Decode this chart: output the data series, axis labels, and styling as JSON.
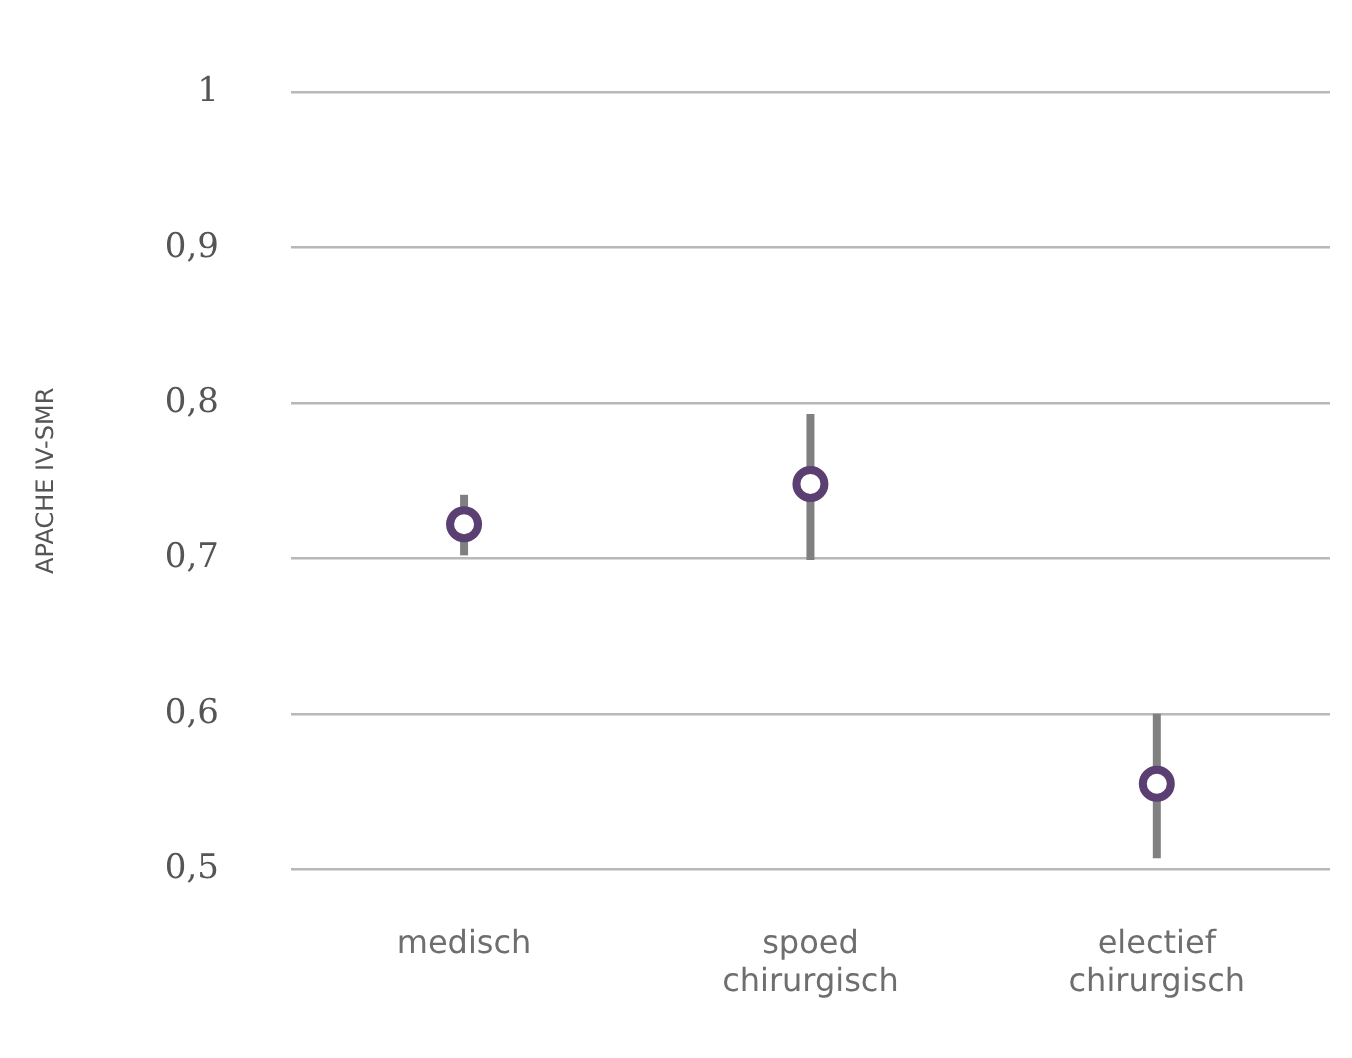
{
  "chart_data": {
    "type": "scatter",
    "ylabel": "APACHE IV-SMR",
    "categories": [
      "medisch",
      "spoed chirurgisch",
      "electief chirurgisch"
    ],
    "series": [
      {
        "color": "#5b3f72",
        "values": [
          0.722,
          0.748,
          0.555
        ],
        "errors": [
          [
            0.702,
            0.741
          ],
          [
            0.699,
            0.793
          ],
          [
            0.507,
            0.6
          ]
        ]
      }
    ],
    "ylim": [
      0.5,
      1
    ],
    "yticks": [
      {
        "value": 0.5,
        "label": "0,5"
      },
      {
        "value": 0.6,
        "label": "0,6"
      },
      {
        "value": 0.7,
        "label": "0,7"
      },
      {
        "value": 0.8,
        "label": "0,8"
      },
      {
        "value": 0.9,
        "label": "0,9"
      },
      1
    ],
    "grid": "y",
    "marker": "circle",
    "legend": false
  }
}
